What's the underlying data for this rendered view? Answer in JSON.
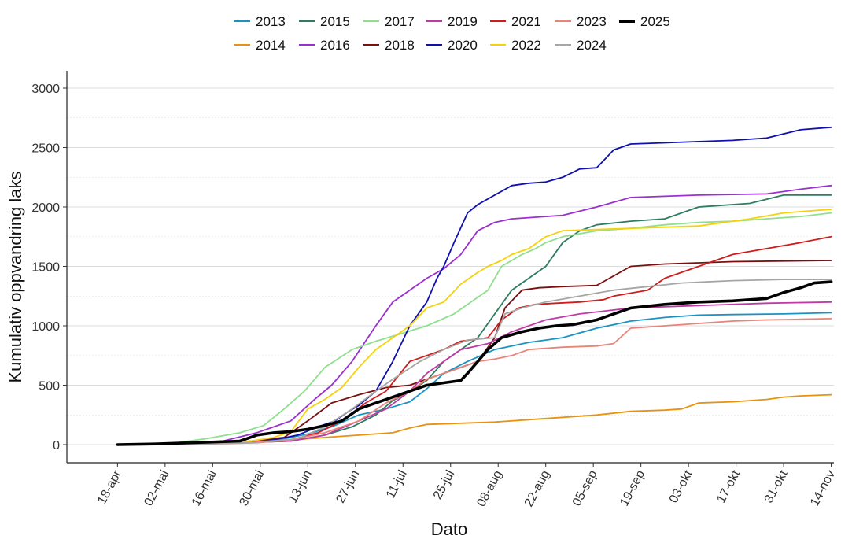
{
  "chart_data": {
    "type": "line",
    "title": "",
    "xlabel": "Dato",
    "ylabel": "Kumulativ oppvandring laks",
    "x_domain_days": [
      0,
      215
    ],
    "x_tick_days": [
      9,
      23,
      37,
      51,
      65,
      79,
      93,
      107,
      121,
      135,
      149,
      163,
      177,
      191,
      205,
      219
    ],
    "x_tick_labels": [
      "18-apr",
      "02-mai",
      "16-mai",
      "30-mai",
      "13-jun",
      "27-jun",
      "11-jul",
      "25-jul",
      "08-aug",
      "22-aug",
      "05-sep",
      "19-sep",
      "03-okt",
      "17-okt",
      "31-okt",
      "14-nov"
    ],
    "ylim": [
      -150,
      3150
    ],
    "y_ticks": [
      0,
      500,
      1000,
      1500,
      2000,
      2500,
      3000
    ],
    "y_tick_labels": [
      "0",
      "500",
      "1000",
      "1500",
      "2000",
      "2500",
      "3000"
    ],
    "grid": true,
    "legend_position": "top",
    "series": [
      {
        "name": "2013",
        "color": "#1a93c4",
        "x": [
          9,
          20,
          35,
          48,
          58,
          65,
          72,
          80,
          88,
          95,
          100,
          105,
          112,
          120,
          130,
          140,
          150,
          160,
          170,
          180,
          190,
          205,
          219
        ],
        "y": [
          0,
          5,
          15,
          25,
          50,
          90,
          150,
          250,
          300,
          360,
          470,
          600,
          700,
          800,
          860,
          900,
          980,
          1040,
          1070,
          1090,
          1095,
          1100,
          1110
        ]
      },
      {
        "name": "2014",
        "color": "#e8920f",
        "x": [
          9,
          30,
          45,
          60,
          70,
          80,
          90,
          95,
          100,
          110,
          120,
          130,
          140,
          150,
          160,
          170,
          175,
          180,
          190,
          200,
          205,
          210,
          219
        ],
        "y": [
          0,
          5,
          20,
          40,
          60,
          80,
          100,
          140,
          170,
          180,
          190,
          210,
          230,
          250,
          280,
          290,
          300,
          350,
          360,
          380,
          400,
          410,
          420
        ]
      },
      {
        "name": "2015",
        "color": "#2e7d5e",
        "x": [
          9,
          30,
          45,
          60,
          70,
          78,
          85,
          90,
          95,
          100,
          105,
          110,
          115,
          120,
          125,
          130,
          135,
          140,
          145,
          150,
          160,
          170,
          180,
          195,
          205,
          219
        ],
        "y": [
          0,
          5,
          15,
          30,
          80,
          150,
          250,
          370,
          450,
          540,
          700,
          800,
          900,
          1100,
          1300,
          1400,
          1500,
          1700,
          1800,
          1850,
          1880,
          1900,
          2000,
          2030,
          2100,
          2100
        ]
      },
      {
        "name": "2016",
        "color": "#9b30d0",
        "x": [
          9,
          25,
          40,
          50,
          60,
          67,
          72,
          78,
          85,
          90,
          95,
          100,
          105,
          110,
          115,
          120,
          125,
          130,
          140,
          150,
          160,
          170,
          180,
          200,
          210,
          219
        ],
        "y": [
          0,
          5,
          30,
          100,
          200,
          380,
          500,
          700,
          1000,
          1200,
          1300,
          1400,
          1480,
          1600,
          1800,
          1870,
          1900,
          1910,
          1930,
          2000,
          2080,
          2090,
          2100,
          2110,
          2150,
          2180
        ]
      },
      {
        "name": "2017",
        "color": "#8ee08e",
        "x": [
          9,
          25,
          35,
          45,
          52,
          58,
          64,
          70,
          78,
          85,
          92,
          100,
          108,
          113,
          118,
          122,
          128,
          132,
          135,
          140,
          150,
          160,
          170,
          180,
          190,
          200,
          210,
          219
        ],
        "y": [
          0,
          10,
          50,
          100,
          160,
          300,
          450,
          650,
          800,
          870,
          930,
          1000,
          1100,
          1200,
          1300,
          1500,
          1600,
          1650,
          1700,
          1750,
          1800,
          1820,
          1850,
          1870,
          1880,
          1900,
          1920,
          1950
        ]
      },
      {
        "name": "2018",
        "color": "#7a0f0f",
        "x": [
          9,
          30,
          45,
          58,
          65,
          72,
          80,
          88,
          95,
          100,
          105,
          110,
          115,
          120,
          123,
          128,
          133,
          140,
          150,
          160,
          170,
          180,
          190,
          205,
          219
        ],
        "y": [
          0,
          5,
          20,
          60,
          200,
          350,
          420,
          480,
          500,
          550,
          600,
          650,
          700,
          900,
          1150,
          1300,
          1320,
          1330,
          1340,
          1500,
          1520,
          1530,
          1540,
          1545,
          1550
        ]
      },
      {
        "name": "2019",
        "color": "#c03aa6",
        "x": [
          9,
          30,
          45,
          60,
          70,
          80,
          88,
          95,
          100,
          105,
          110,
          118,
          125,
          135,
          145,
          160,
          180,
          200,
          219
        ],
        "y": [
          0,
          5,
          15,
          30,
          80,
          200,
          300,
          450,
          600,
          700,
          800,
          850,
          950,
          1050,
          1100,
          1150,
          1170,
          1190,
          1200
        ]
      },
      {
        "name": "2020",
        "color": "#1010b0",
        "x": [
          9,
          30,
          45,
          55,
          62,
          68,
          73,
          77,
          80,
          85,
          90,
          95,
          100,
          103,
          105,
          108,
          112,
          115,
          120,
          125,
          130,
          135,
          140,
          145,
          150,
          155,
          160,
          170,
          180,
          190,
          200,
          210,
          219
        ],
        "y": [
          0,
          5,
          15,
          40,
          80,
          150,
          200,
          280,
          330,
          450,
          700,
          1000,
          1200,
          1400,
          1500,
          1700,
          1950,
          2020,
          2100,
          2180,
          2200,
          2210,
          2250,
          2320,
          2330,
          2480,
          2530,
          2540,
          2550,
          2560,
          2580,
          2650,
          2670
        ]
      },
      {
        "name": "2021",
        "color": "#d01c1c",
        "x": [
          9,
          30,
          45,
          60,
          68,
          75,
          82,
          88,
          95,
          100,
          105,
          110,
          118,
          122,
          127,
          132,
          138,
          145,
          152,
          155,
          165,
          170,
          180,
          190,
          200,
          210,
          219
        ],
        "y": [
          0,
          5,
          20,
          40,
          100,
          200,
          350,
          450,
          700,
          750,
          800,
          870,
          900,
          1050,
          1150,
          1180,
          1190,
          1200,
          1220,
          1250,
          1300,
          1400,
          1500,
          1600,
          1650,
          1700,
          1750
        ]
      },
      {
        "name": "2022",
        "color": "#f5d20a",
        "x": [
          9,
          30,
          45,
          55,
          60,
          65,
          70,
          75,
          80,
          85,
          90,
          95,
          100,
          105,
          110,
          115,
          118,
          122,
          125,
          130,
          135,
          140,
          150,
          160,
          170,
          180,
          195,
          205,
          219
        ],
        "y": [
          0,
          5,
          15,
          60,
          110,
          300,
          380,
          480,
          650,
          800,
          900,
          1000,
          1150,
          1200,
          1350,
          1450,
          1500,
          1550,
          1600,
          1650,
          1750,
          1800,
          1810,
          1820,
          1830,
          1840,
          1900,
          1950,
          1980
        ]
      },
      {
        "name": "2023",
        "color": "#e8847a",
        "x": [
          9,
          35,
          50,
          60,
          70,
          80,
          88,
          95,
          100,
          105,
          110,
          115,
          120,
          125,
          130,
          140,
          150,
          155,
          160,
          170,
          180,
          190,
          200,
          210,
          219
        ],
        "y": [
          0,
          5,
          15,
          40,
          100,
          200,
          350,
          450,
          550,
          600,
          650,
          700,
          720,
          750,
          800,
          820,
          830,
          850,
          980,
          1000,
          1020,
          1040,
          1050,
          1055,
          1060
        ]
      },
      {
        "name": "2024",
        "color": "#a6a6a6",
        "x": [
          9,
          35,
          50,
          62,
          70,
          78,
          85,
          90,
          98,
          105,
          112,
          120,
          123,
          128,
          135,
          145,
          155,
          165,
          175,
          190,
          205,
          219
        ],
        "y": [
          0,
          5,
          20,
          50,
          150,
          300,
          450,
          550,
          700,
          800,
          880,
          900,
          1100,
          1150,
          1200,
          1250,
          1300,
          1330,
          1360,
          1380,
          1390,
          1390
        ]
      },
      {
        "name": "2025",
        "color": "#000000",
        "x": [
          9,
          20,
          35,
          45,
          50,
          55,
          60,
          65,
          70,
          75,
          80,
          85,
          90,
          95,
          100,
          105,
          110,
          112,
          115,
          118,
          122,
          128,
          133,
          138,
          143,
          150,
          155,
          160,
          170,
          175,
          180,
          190,
          200,
          205,
          210,
          214,
          219
        ],
        "y": [
          0,
          5,
          20,
          30,
          80,
          100,
          110,
          130,
          160,
          200,
          300,
          350,
          400,
          450,
          500,
          520,
          540,
          600,
          700,
          800,
          900,
          950,
          980,
          1000,
          1010,
          1050,
          1100,
          1150,
          1180,
          1190,
          1200,
          1210,
          1230,
          1280,
          1320,
          1360,
          1370
        ],
        "emphasis": true
      }
    ]
  }
}
